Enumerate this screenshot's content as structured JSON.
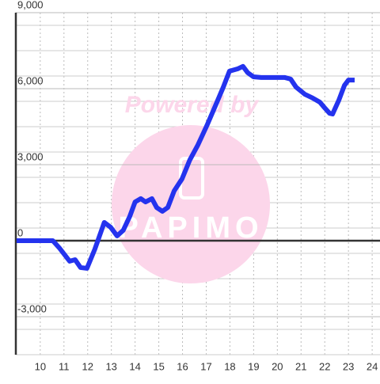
{
  "chart_data": {
    "type": "line",
    "watermark": "Powered by",
    "watermark_logo": "PAPIMO",
    "x": [
      9.0,
      10.53,
      10.8,
      11.24,
      11.47,
      11.7,
      11.97,
      12.3,
      12.7,
      12.97,
      13.24,
      13.5,
      13.78,
      14.0,
      14.24,
      14.44,
      14.71,
      14.91,
      15.15,
      15.38,
      15.65,
      15.98,
      16.31,
      16.65,
      17.05,
      17.38,
      17.72,
      17.98,
      18.32,
      18.55,
      18.75,
      18.99,
      19.32,
      19.66,
      19.99,
      20.32,
      20.56,
      20.79,
      21.16,
      21.49,
      21.79,
      21.99,
      22.2,
      22.33,
      22.6,
      22.83,
      23.0,
      23.26
    ],
    "series": [
      {
        "color": "#2433ee",
        "values": [
          0,
          0,
          -280,
          -810,
          -750,
          -1060,
          -1090,
          -340,
          720,
          530,
          190,
          410,
          970,
          1530,
          1660,
          1530,
          1660,
          1310,
          1160,
          1310,
          1970,
          2440,
          3190,
          3780,
          4590,
          5310,
          6060,
          6690,
          6780,
          6880,
          6630,
          6470,
          6440,
          6440,
          6440,
          6440,
          6380,
          6060,
          5780,
          5630,
          5470,
          5250,
          5030,
          5000,
          5560,
          6130,
          6340,
          6340
        ]
      }
    ],
    "xlim": [
      8.97,
      24.33
    ],
    "xticks": [
      10,
      11,
      12,
      13,
      14,
      15,
      16,
      17,
      18,
      19,
      20,
      21,
      22,
      23,
      24
    ],
    "ylim": [
      -4500,
      9000
    ],
    "yticks": [
      {
        "value": 9000,
        "label": "9,000"
      },
      {
        "value": 6000,
        "label": "6,000"
      },
      {
        "value": 3000,
        "label": "3,000"
      },
      0,
      {
        "value": -3000,
        "label": "-3,000"
      }
    ],
    "grid": true,
    "grid_minor_per_tick": 3
  }
}
